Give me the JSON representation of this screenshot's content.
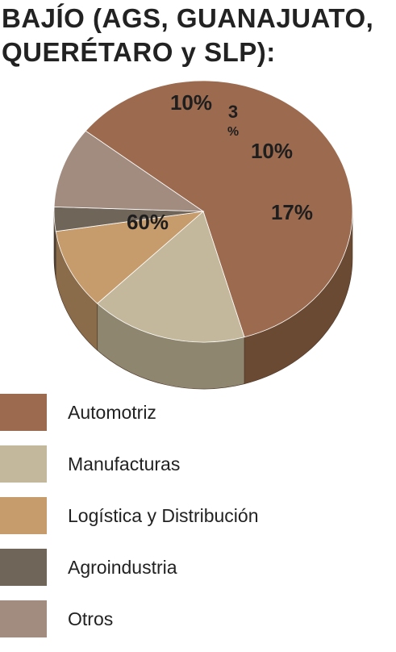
{
  "title": {
    "line1": "BAJÍO (AGS, GUANAJUATO,",
    "line2": "QUERÉTARO y SLP):"
  },
  "chart_data": {
    "type": "pie",
    "title": "BAJÍO (AGS, GUANAJUATO, QUERÉTARO y SLP):",
    "slices": [
      {
        "name": "Automotriz",
        "value": 60,
        "label": "60%",
        "color": "#9c6b4f",
        "side_color": "#6b4a33"
      },
      {
        "name": "Manufacturas",
        "value": 17,
        "label": "17%",
        "color": "#c4b89c",
        "side_color": "#8f8670"
      },
      {
        "name": "Logística y Distribución",
        "value": 10,
        "label": "10%",
        "color": "#c69c6d",
        "side_color": "#8a6c4b"
      },
      {
        "name": "Agroindustria",
        "value": 3,
        "label": "3 %",
        "color": "#706559",
        "side_color": "#4a423a"
      },
      {
        "name": "Otros",
        "value": 10,
        "label": "10%",
        "color": "#a28c80",
        "side_color": "#6e5f56"
      }
    ],
    "legend": "bottom"
  }
}
